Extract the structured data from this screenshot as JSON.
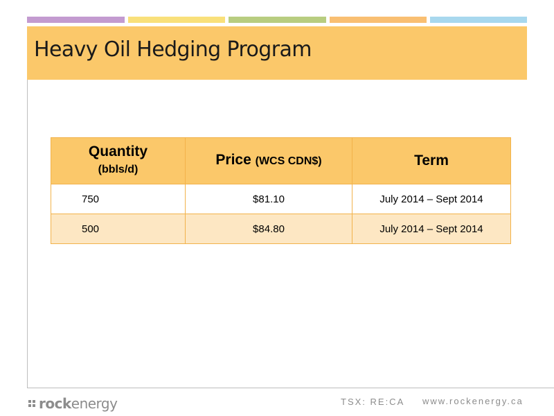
{
  "colors": {
    "stripes": [
      "#c39bd0",
      "#f9e07a",
      "#b8cd80",
      "#f9bf72",
      "#a8d8ee"
    ],
    "title_bar": "#fbc86a",
    "table_header": "#fbc86a",
    "table_alt_row": "#fde7c3",
    "table_border": "#f2b24a",
    "footer_text": "#8c8c8c"
  },
  "slide": {
    "title": "Heavy Oil Hedging Program"
  },
  "table": {
    "headers": [
      {
        "main": "Quantity",
        "sub": "(bbls/d)"
      },
      {
        "main": "Price",
        "sub": "(WCS CDN$)"
      },
      {
        "main": "Term",
        "sub": ""
      }
    ],
    "rows": [
      {
        "quantity": "750",
        "price": "$81.10",
        "term": "July 2014 – Sept 2014"
      },
      {
        "quantity": "500",
        "price": "$84.80",
        "term": "July 2014 – Sept 2014"
      }
    ]
  },
  "footer": {
    "logo_bold": "rock",
    "logo_rest": "energy",
    "ticker": "TSX: RE:CA",
    "website": "www.rockenergy.ca"
  }
}
